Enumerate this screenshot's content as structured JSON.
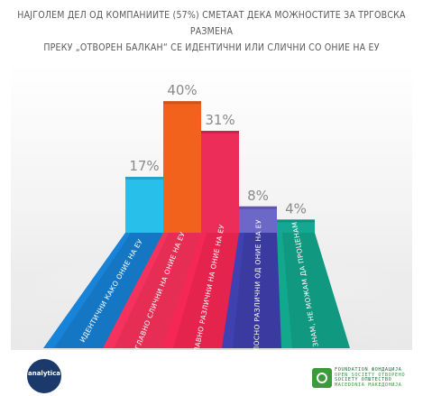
{
  "title": {
    "line1": "НАЈГОЛЕМ ДЕЛ ОД КОМПАНИИТЕ (57%) СМЕТААТ ДЕКА МОЖНОСТИТЕ ЗА ТРГОВСКА РАЗМЕНА",
    "line2": "ПРЕКУ „ОТВОРЕН БАЛКАН“ СЕ ИДЕНТИЧНИ ИЛИ СЛИЧНИ СО ОНИЕ НА ЕУ"
  },
  "chart_data": {
    "type": "bar",
    "categories": [
      "ИДЕНТИЧНИ КАКО ОНИЕ НА ЕУ",
      "ГЛАВНО СЛИЧНИ НА ОНИЕ НА ЕУ",
      "ГЛАВНО РАЗЛИЧНИ НА ОНИЕ НА ЕУ",
      "ЦЕЛОСНО РАЗЛИЧНИ ОД ОНИЕ НА ЕУ",
      "НЕ ЗНАМ, НЕ МОЖАМ ДА ПРОЦЕНАМ"
    ],
    "values": [
      17,
      40,
      31,
      8,
      4
    ],
    "value_labels": [
      "17%",
      "40%",
      "31%",
      "8%",
      "4%"
    ],
    "unit": "%",
    "colors": [
      "#28c0ea",
      "#f2621d",
      "#ec2c59",
      "#6b68c8",
      "#14a893"
    ],
    "ribbon_colors": [
      "#1577c4",
      "#e62e55",
      "#e5244d",
      "#3a3aa0",
      "#109880"
    ],
    "ylim": [
      0,
      45
    ],
    "grid": false,
    "legend": "none"
  },
  "logos": {
    "left_word": "analytica",
    "right_lines": [
      "FOUNDATION ФОНДАЦИЈА",
      "OPEN SOCIETY ОТВОРЕНО",
      "SOCIETY ОПШТЕСТВО",
      "MACEDONIA МАКЕДОНИЈА"
    ],
    "right_mark_icon": "osf-logo-icon"
  }
}
